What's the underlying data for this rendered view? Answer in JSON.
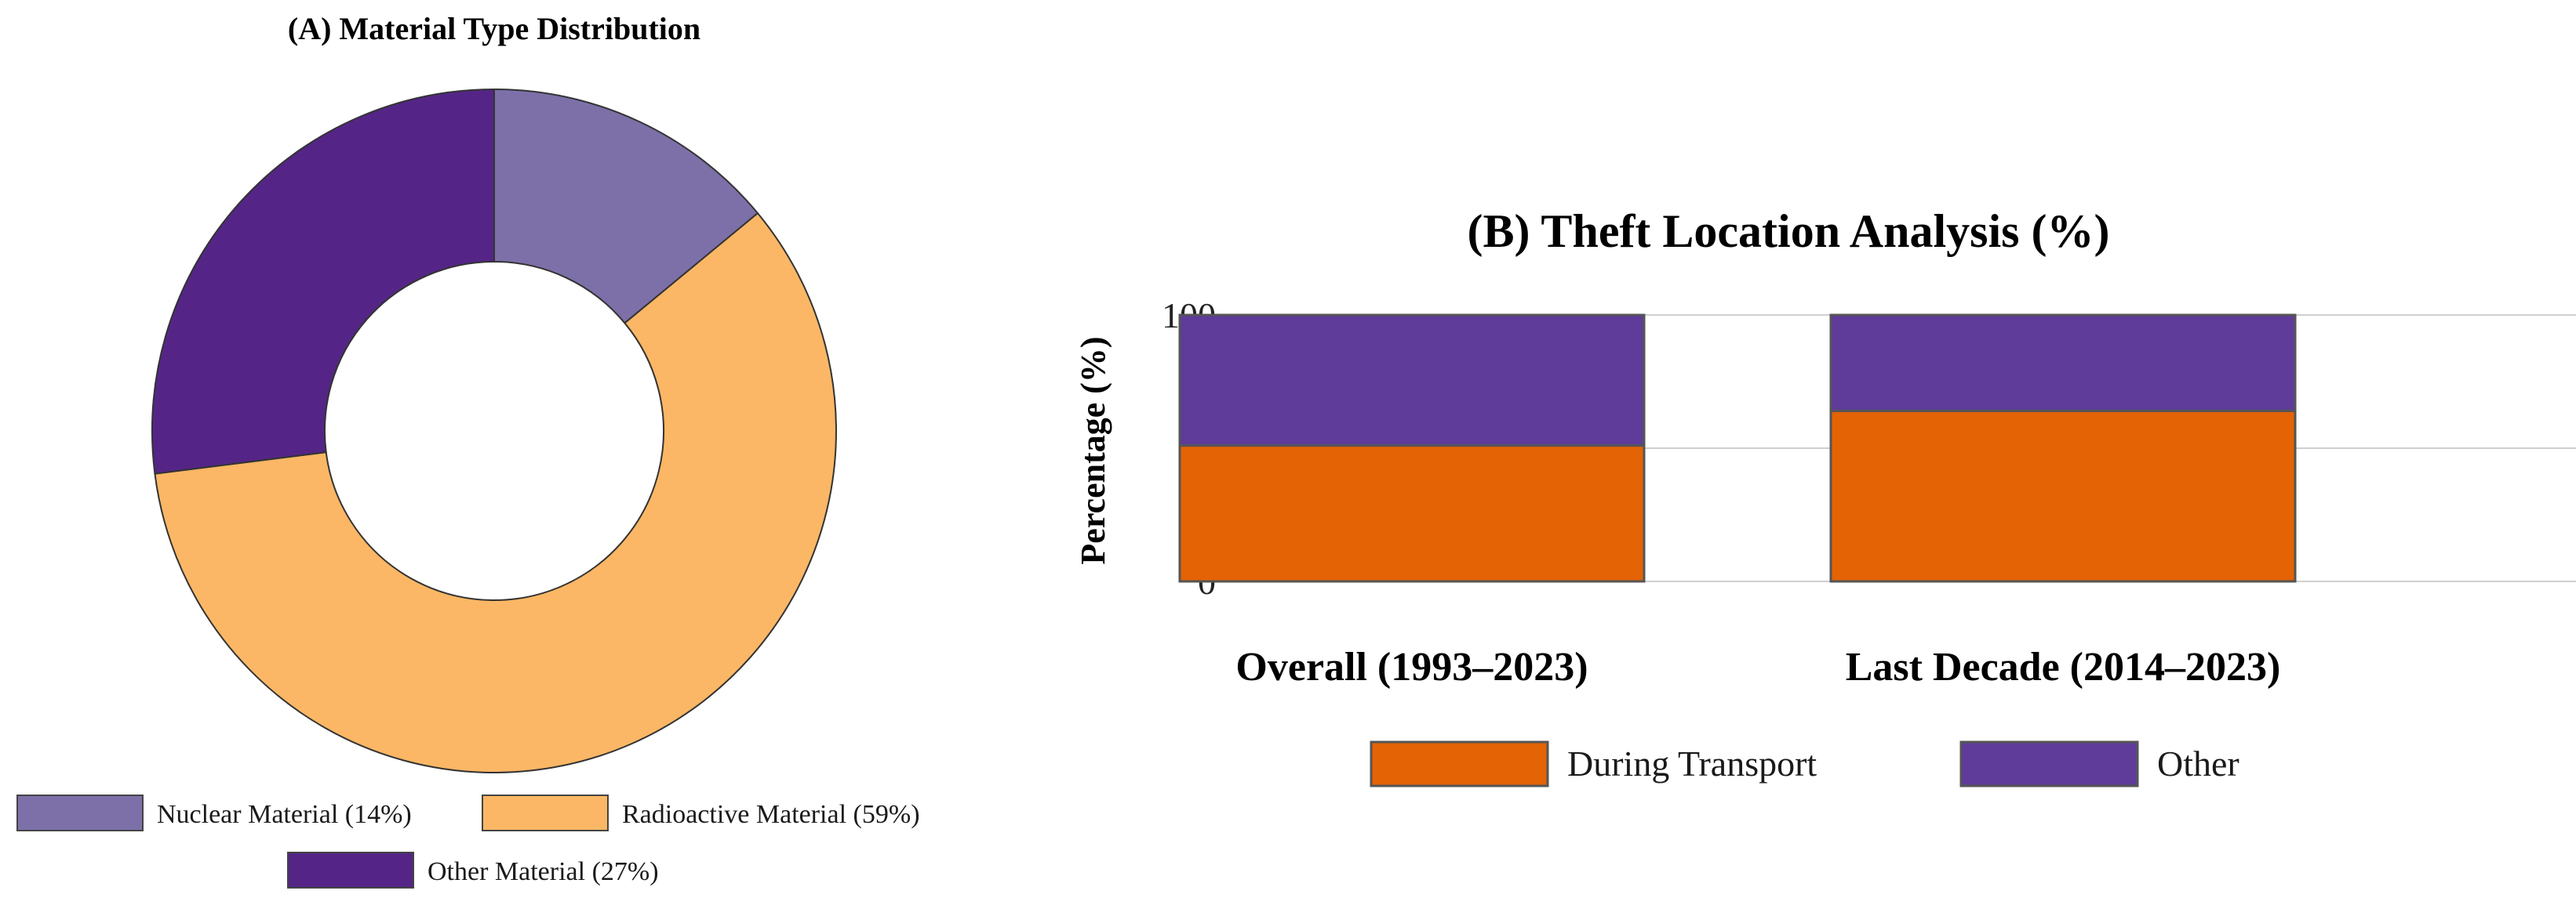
{
  "chart_data": [
    {
      "type": "pie",
      "variant": "donut",
      "title": "(A) Material Type Distribution",
      "slices": [
        {
          "label": "Nuclear Material (14%)",
          "value": 14,
          "color": "#7d70a9"
        },
        {
          "label": "Radioactive Material (59%)",
          "value": 59,
          "color": "#fbb765"
        },
        {
          "label": "Other Material (27%)",
          "value": 27,
          "color": "#542586"
        }
      ],
      "legend_position": "bottom"
    },
    {
      "type": "bar",
      "stacked": true,
      "title": "(B) Theft Location Analysis (%)",
      "xlabel": "",
      "ylabel": "Percentage (%)",
      "ylim": [
        0,
        100
      ],
      "yticks": [
        "0",
        "50",
        "100"
      ],
      "categories": [
        "Overall (1993–2023)",
        "Last Decade (2014–2023)"
      ],
      "series": [
        {
          "name": "During Transport",
          "values": [
            51,
            64
          ],
          "color": "#e46304"
        },
        {
          "name": "Other",
          "values": [
            49,
            36
          ],
          "color": "#5f3b9a"
        }
      ],
      "grid": true,
      "legend_position": "bottom"
    }
  ]
}
